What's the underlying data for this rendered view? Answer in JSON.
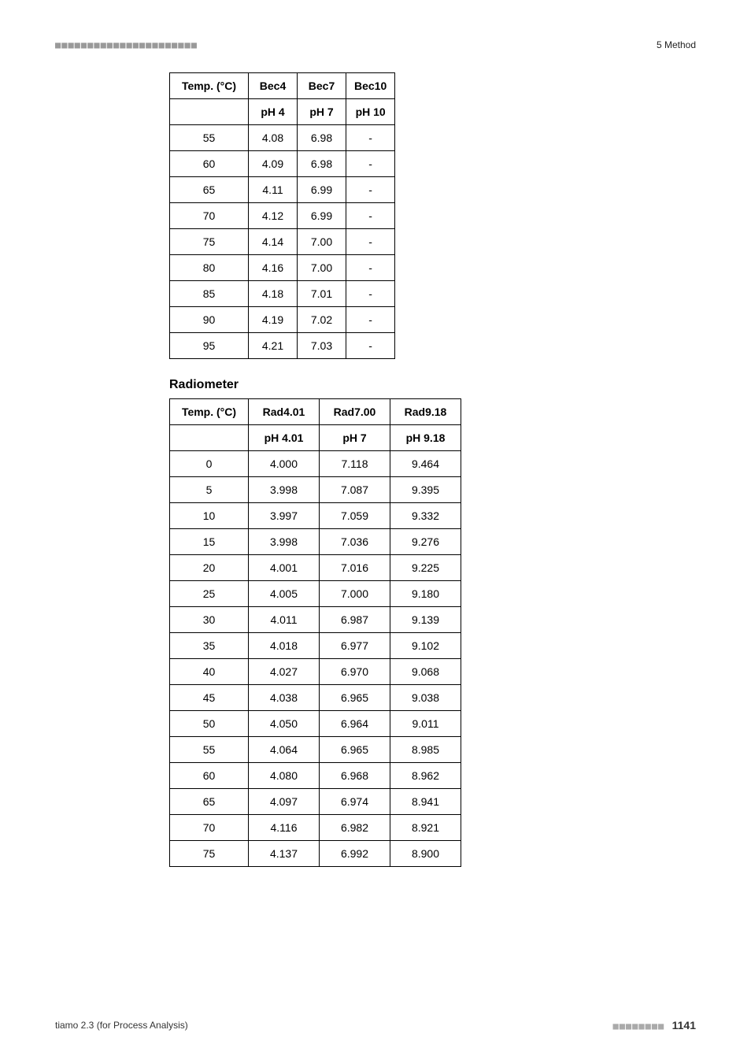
{
  "header": {
    "bars": "■■■■■■■■■■■■■■■■■■■■■■",
    "section_label": "5 Method"
  },
  "bec_table": {
    "type": "table",
    "columns_hdr": [
      "Temp. (°C)",
      "Bec4",
      "Bec7",
      "Bec10"
    ],
    "columns_sub": [
      "",
      "pH 4",
      "pH 7",
      "pH 10"
    ],
    "rows": [
      [
        "55",
        "4.08",
        "6.98",
        "-"
      ],
      [
        "60",
        "4.09",
        "6.98",
        "-"
      ],
      [
        "65",
        "4.11",
        "6.99",
        "-"
      ],
      [
        "70",
        "4.12",
        "6.99",
        "-"
      ],
      [
        "75",
        "4.14",
        "7.00",
        "-"
      ],
      [
        "80",
        "4.16",
        "7.00",
        "-"
      ],
      [
        "85",
        "4.18",
        "7.01",
        "-"
      ],
      [
        "90",
        "4.19",
        "7.02",
        "-"
      ],
      [
        "95",
        "4.21",
        "7.03",
        "-"
      ]
    ],
    "col_classes": [
      "bec-c0",
      "bec-c",
      "bec-c",
      "bec-c"
    ],
    "border_color": "#000000",
    "font_size_pt": 10,
    "header_font_weight": "bold"
  },
  "radiometer": {
    "heading": "Radiometer",
    "type": "table",
    "columns_hdr": [
      "Temp. (°C)",
      "Rad4.01",
      "Rad7.00",
      "Rad9.18"
    ],
    "columns_sub": [
      "",
      "pH 4.01",
      "pH 7",
      "pH 9.18"
    ],
    "rows": [
      [
        "0",
        "4.000",
        "7.118",
        "9.464"
      ],
      [
        "5",
        "3.998",
        "7.087",
        "9.395"
      ],
      [
        "10",
        "3.997",
        "7.059",
        "9.332"
      ],
      [
        "15",
        "3.998",
        "7.036",
        "9.276"
      ],
      [
        "20",
        "4.001",
        "7.016",
        "9.225"
      ],
      [
        "25",
        "4.005",
        "7.000",
        "9.180"
      ],
      [
        "30",
        "4.011",
        "6.987",
        "9.139"
      ],
      [
        "35",
        "4.018",
        "6.977",
        "9.102"
      ],
      [
        "40",
        "4.027",
        "6.970",
        "9.068"
      ],
      [
        "45",
        "4.038",
        "6.965",
        "9.038"
      ],
      [
        "50",
        "4.050",
        "6.964",
        "9.011"
      ],
      [
        "55",
        "4.064",
        "6.965",
        "8.985"
      ],
      [
        "60",
        "4.080",
        "6.968",
        "8.962"
      ],
      [
        "65",
        "4.097",
        "6.974",
        "8.941"
      ],
      [
        "70",
        "4.116",
        "6.982",
        "8.921"
      ],
      [
        "75",
        "4.137",
        "6.992",
        "8.900"
      ]
    ],
    "col_classes": [
      "rad-c0",
      "rad-c",
      "rad-c",
      "rad-c"
    ],
    "border_color": "#000000",
    "font_size_pt": 10,
    "header_font_weight": "bold"
  },
  "footer": {
    "doc_title": "tiamo 2.3 (for Process Analysis)",
    "bars": "■■■■■■■■",
    "page_number": "1141"
  },
  "colors": {
    "text": "#000000",
    "muted": "#999999",
    "background": "#ffffff",
    "border": "#000000"
  }
}
